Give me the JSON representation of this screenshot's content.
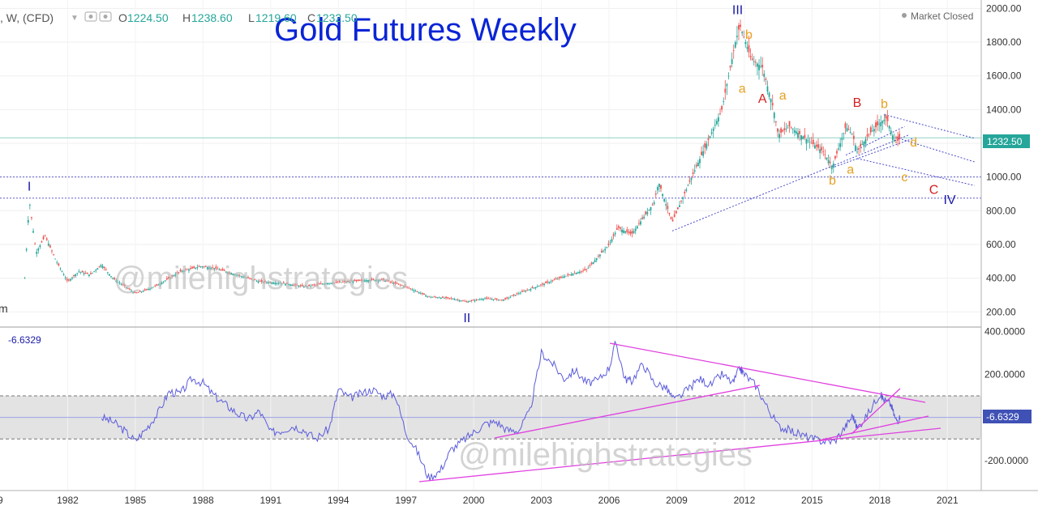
{
  "header": {
    "symbol": ", W, (CFD)",
    "o_label": "O",
    "o_value": "1224.50",
    "h_label": "H",
    "h_value": "1238.60",
    "l_label": "L",
    "l_value": "1219.60",
    "c_label": "C",
    "c_value": "1232.50",
    "market_status": "Market Closed"
  },
  "title": "Gold Futures Weekly",
  "watermark": "@milehighstrategies",
  "left_clipped_label": "m",
  "x_axis": {
    "labels": [
      "1982",
      "1985",
      "1988",
      "1991",
      "1994",
      "1997",
      "2000",
      "2003",
      "2006",
      "2009",
      "2012",
      "2015",
      "2018",
      "2021"
    ],
    "range": [
      1979,
      2022.5
    ]
  },
  "price_axis": {
    "ticks": [
      "2000.00",
      "1800.00",
      "1600.00",
      "1400.00",
      "1200.00",
      "1000.00",
      "800.00",
      "600.00",
      "400.00",
      "200.00"
    ],
    "range": [
      110,
      2050
    ],
    "last_price": "1232.50"
  },
  "osc_axis": {
    "ticks": [
      "400.0000",
      "200.0000",
      "-200.0000"
    ],
    "range": [
      -340,
      420
    ],
    "last_value": "-6.6329",
    "top_left_value": "-6.6329",
    "band": [
      100,
      -100
    ]
  },
  "waves": [
    {
      "text": "I",
      "color": "#1a1aa8",
      "x": 1980.3,
      "y": 920
    },
    {
      "text": "II",
      "color": "#1a1aa8",
      "x": 1999.7,
      "y": 140
    },
    {
      "text": "III",
      "color": "#1a1aa8",
      "x": 2011.7,
      "y": 1965
    },
    {
      "text": "IV",
      "color": "#1a1aa8",
      "x": 2021.1,
      "y": 840
    },
    {
      "text": "a",
      "color": "#e6a020",
      "x": 2011.9,
      "y": 1500
    },
    {
      "text": "b",
      "color": "#e6a020",
      "x": 2012.2,
      "y": 1820
    },
    {
      "text": "A",
      "color": "#d42020",
      "x": 2012.8,
      "y": 1440
    },
    {
      "text": "a",
      "color": "#e6a020",
      "x": 2013.7,
      "y": 1460
    },
    {
      "text": "B",
      "color": "#d42020",
      "x": 2017.0,
      "y": 1415
    },
    {
      "text": "b",
      "color": "#e6a020",
      "x": 2018.2,
      "y": 1410
    },
    {
      "text": "d",
      "color": "#e6a020",
      "x": 2019.5,
      "y": 1180
    },
    {
      "text": "a",
      "color": "#e6a020",
      "x": 2016.7,
      "y": 1020
    },
    {
      "text": "b",
      "color": "#e6a020",
      "x": 2015.9,
      "y": 955
    },
    {
      "text": "c",
      "color": "#e6a020",
      "x": 2019.1,
      "y": 975
    },
    {
      "text": "C",
      "color": "#d42020",
      "x": 2020.4,
      "y": 900
    }
  ],
  "chart_data": [
    {
      "type": "candlestick",
      "title": "Gold Futures Weekly",
      "ylim": [
        110,
        2050
      ],
      "xlim": [
        1979,
        2022.5
      ],
      "path_x": [
        1980.1,
        1980.3,
        1980.6,
        1981.0,
        1981.5,
        1982.0,
        1982.5,
        1983.0,
        1983.5,
        1984.0,
        1985.0,
        1985.5,
        1986.0,
        1987.0,
        1987.9,
        1988.5,
        1989.5,
        1990.5,
        1991.5,
        1992.5,
        1993.5,
        1994.5,
        1995.5,
        1996.0,
        1997.0,
        1997.5,
        1998.0,
        1999.0,
        1999.7,
        2000.5,
        2001.3,
        2002.0,
        2003.0,
        2004.0,
        2005.0,
        2006.0,
        2006.4,
        2007.0,
        2008.0,
        2008.2,
        2008.8,
        2009.5,
        2010.0,
        2010.5,
        2011.0,
        2011.6,
        2011.8,
        2012.3,
        2012.8,
        2013.3,
        2013.5,
        2014.0,
        2014.5,
        2015.0,
        2015.5,
        2015.9,
        2016.5,
        2016.8,
        2017.0,
        2017.5,
        2018.0,
        2018.3,
        2018.7,
        2018.9
      ],
      "path_y": [
        400,
        860,
        550,
        650,
        500,
        380,
        440,
        420,
        480,
        400,
        310,
        330,
        360,
        440,
        470,
        460,
        420,
        380,
        370,
        350,
        370,
        380,
        390,
        390,
        350,
        320,
        290,
        280,
        260,
        280,
        270,
        310,
        360,
        410,
        450,
        600,
        700,
        660,
        850,
        970,
        730,
        950,
        1100,
        1250,
        1400,
        1800,
        1900,
        1700,
        1650,
        1400,
        1250,
        1300,
        1250,
        1200,
        1150,
        1060,
        1300,
        1250,
        1150,
        1250,
        1320,
        1350,
        1200,
        1230
      ],
      "levels": [
        875,
        1000,
        1232.5
      ],
      "trendlines": [
        {
          "x": [
            2008.8,
            2019.3
          ],
          "y": [
            680,
            1250
          ]
        },
        {
          "x": [
            2018.2,
            2022.2
          ],
          "y": [
            1370,
            1230
          ]
        },
        {
          "x": [
            2018.7,
            2022.2
          ],
          "y": [
            1235,
            1090
          ]
        },
        {
          "x": [
            2017.0,
            2022.2
          ],
          "y": [
            1110,
            950
          ]
        },
        {
          "x": [
            2016.0,
            2019.5
          ],
          "y": [
            1060,
            1230
          ]
        },
        {
          "x": [
            2016.5,
            2019.1
          ],
          "y": [
            1130,
            1300
          ]
        }
      ]
    },
    {
      "type": "line",
      "ylim": [
        -340,
        420
      ],
      "x": [
        1983.5,
        1984.0,
        1984.5,
        1985.0,
        1985.5,
        1986.0,
        1986.5,
        1987.0,
        1987.5,
        1988.0,
        1988.5,
        1989.0,
        1989.5,
        1990.0,
        1990.5,
        1991.0,
        1991.5,
        1992.0,
        1992.5,
        1993.0,
        1993.6,
        1994.0,
        1994.5,
        1995.0,
        1995.5,
        1996.0,
        1996.5,
        1997.0,
        1997.5,
        1998.0,
        1998.5,
        1999.0,
        1999.5,
        2000.0,
        2000.5,
        2001.0,
        2001.5,
        2002.0,
        2002.5,
        2003.0,
        2003.5,
        2004.0,
        2004.5,
        2005.0,
        2005.5,
        2006.0,
        2006.3,
        2006.7,
        2007.0,
        2007.5,
        2008.0,
        2008.5,
        2008.9,
        2009.5,
        2010.0,
        2010.5,
        2011.0,
        2011.5,
        2011.8,
        2012.0,
        2012.5,
        2013.0,
        2013.5,
        2014.0,
        2014.5,
        2015.0,
        2015.5,
        2016.0,
        2016.5,
        2016.8,
        2017.0,
        2017.5,
        2018.0,
        2018.2,
        2018.5,
        2018.7,
        2018.9
      ],
      "y": [
        0,
        -20,
        -60,
        -110,
        -50,
        20,
        120,
        110,
        180,
        160,
        100,
        60,
        20,
        -10,
        30,
        -70,
        -60,
        -40,
        -60,
        -100,
        -50,
        130,
        90,
        110,
        130,
        100,
        110,
        -70,
        -160,
        -280,
        -250,
        -150,
        -110,
        -70,
        -30,
        -20,
        -60,
        -60,
        30,
        300,
        250,
        180,
        220,
        160,
        170,
        230,
        350,
        180,
        170,
        250,
        160,
        140,
        80,
        130,
        180,
        150,
        200,
        160,
        230,
        200,
        150,
        50,
        -40,
        -60,
        -80,
        -100,
        -110,
        -110,
        -40,
        10,
        -50,
        20,
        110,
        80,
        60,
        -10,
        -10
      ]
    }
  ]
}
